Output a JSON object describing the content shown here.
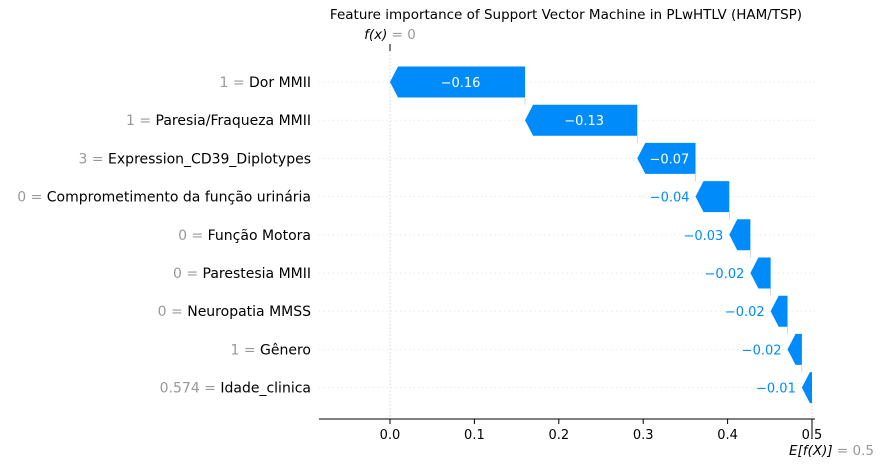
{
  "chart_data": {
    "type": "waterfall",
    "title": "Feature importance of Support Vector Machine in PLwHTLV (HAM/TSP)",
    "fx_label": "f(x)",
    "fx_value": "0",
    "base_label": "E[f(X)]",
    "base_value": "0.5",
    "base_value_num": 0.5,
    "xlim": [
      -0.085,
      0.505
    ],
    "xticks": [
      0.0,
      0.1,
      0.2,
      0.3,
      0.4,
      0.5
    ],
    "xtick_labels": [
      "0.0",
      "0.1",
      "0.2",
      "0.3",
      "0.4",
      "0.5"
    ],
    "colors": {
      "negative": "#008bfb",
      "feature_value": "#999999",
      "text": "#000000",
      "gridline": "#cccccc"
    },
    "features": [
      {
        "value": "1",
        "name": "Dor MMII",
        "contribution": -0.16,
        "label": "−0.16",
        "start": 0.16,
        "end": 0.0
      },
      {
        "value": "1",
        "name": "Paresia/Fraqueza MMII",
        "contribution": -0.13,
        "label": "−0.13",
        "start": 0.293,
        "end": 0.16
      },
      {
        "value": "3",
        "name": "Expression_CD39_Diplotypes",
        "contribution": -0.07,
        "label": "−0.07",
        "start": 0.362,
        "end": 0.293
      },
      {
        "value": "0",
        "name": "Comprometimento da função urinária",
        "contribution": -0.04,
        "label": "−0.04",
        "start": 0.402,
        "end": 0.362
      },
      {
        "value": "0",
        "name": "Função Motora",
        "contribution": -0.03,
        "label": "−0.03",
        "start": 0.427,
        "end": 0.402
      },
      {
        "value": "0",
        "name": "Parestesia MMII",
        "contribution": -0.02,
        "label": "−0.02",
        "start": 0.451,
        "end": 0.427
      },
      {
        "value": "0",
        "name": "Neuropatia MMSS",
        "contribution": -0.02,
        "label": "−0.02",
        "start": 0.471,
        "end": 0.451
      },
      {
        "value": "1",
        "name": "Gênero",
        "contribution": -0.02,
        "label": "−0.02",
        "start": 0.488,
        "end": 0.471
      },
      {
        "value": "0.574",
        "name": "Idade_clinica",
        "contribution": -0.01,
        "label": "−0.01",
        "start": 0.5,
        "end": 0.488
      }
    ]
  }
}
